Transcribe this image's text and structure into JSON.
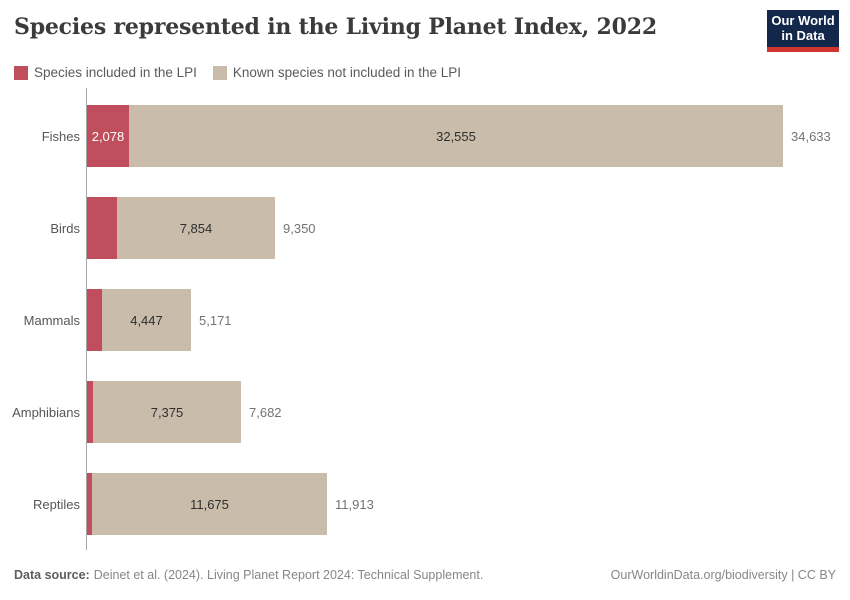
{
  "header": {
    "title": "Species represented in the Living Planet Index, 2022",
    "logo": {
      "line1": "Our World",
      "line2": "in Data"
    }
  },
  "legend": {
    "items": [
      {
        "label": "Species included in the LPI",
        "color": "#c14e5c"
      },
      {
        "label": "Known species not included in the LPI",
        "color": "#c9bcab"
      }
    ]
  },
  "chart_data": {
    "type": "bar",
    "orientation": "horizontal",
    "stacked": true,
    "title": "Species represented in the Living Planet Index, 2022",
    "categories": [
      "Fishes",
      "Birds",
      "Mammals",
      "Amphibians",
      "Reptiles"
    ],
    "series": [
      {
        "name": "Species included in the LPI",
        "color": "#c14e5c",
        "values": [
          2078,
          1496,
          724,
          307,
          238
        ]
      },
      {
        "name": "Known species not included in the LPI",
        "color": "#c9bcab",
        "values": [
          32555,
          7854,
          4447,
          7375,
          11675
        ]
      }
    ],
    "totals": [
      34633,
      9350,
      5171,
      7682,
      11913
    ],
    "segment_labels": [
      {
        "included": "2,078",
        "not_included": "32,555",
        "total": "34,633"
      },
      {
        "included": "",
        "not_included": "7,854",
        "total": "9,350"
      },
      {
        "included": "",
        "not_included": "4,447",
        "total": "5,171"
      },
      {
        "included": "",
        "not_included": "7,375",
        "total": "7,682"
      },
      {
        "included": "",
        "not_included": "11,675",
        "total": "11,913"
      }
    ],
    "xlim": [
      0,
      34633
    ],
    "xlabel": "",
    "ylabel": "",
    "grid": false,
    "legend_position": "top-left"
  },
  "footer": {
    "source_label": "Data source:",
    "source_text": "Deinet et al. (2024). Living Planet Report 2024: Technical Supplement.",
    "right_text": "OurWorldinData.org/biodiversity | CC BY"
  }
}
